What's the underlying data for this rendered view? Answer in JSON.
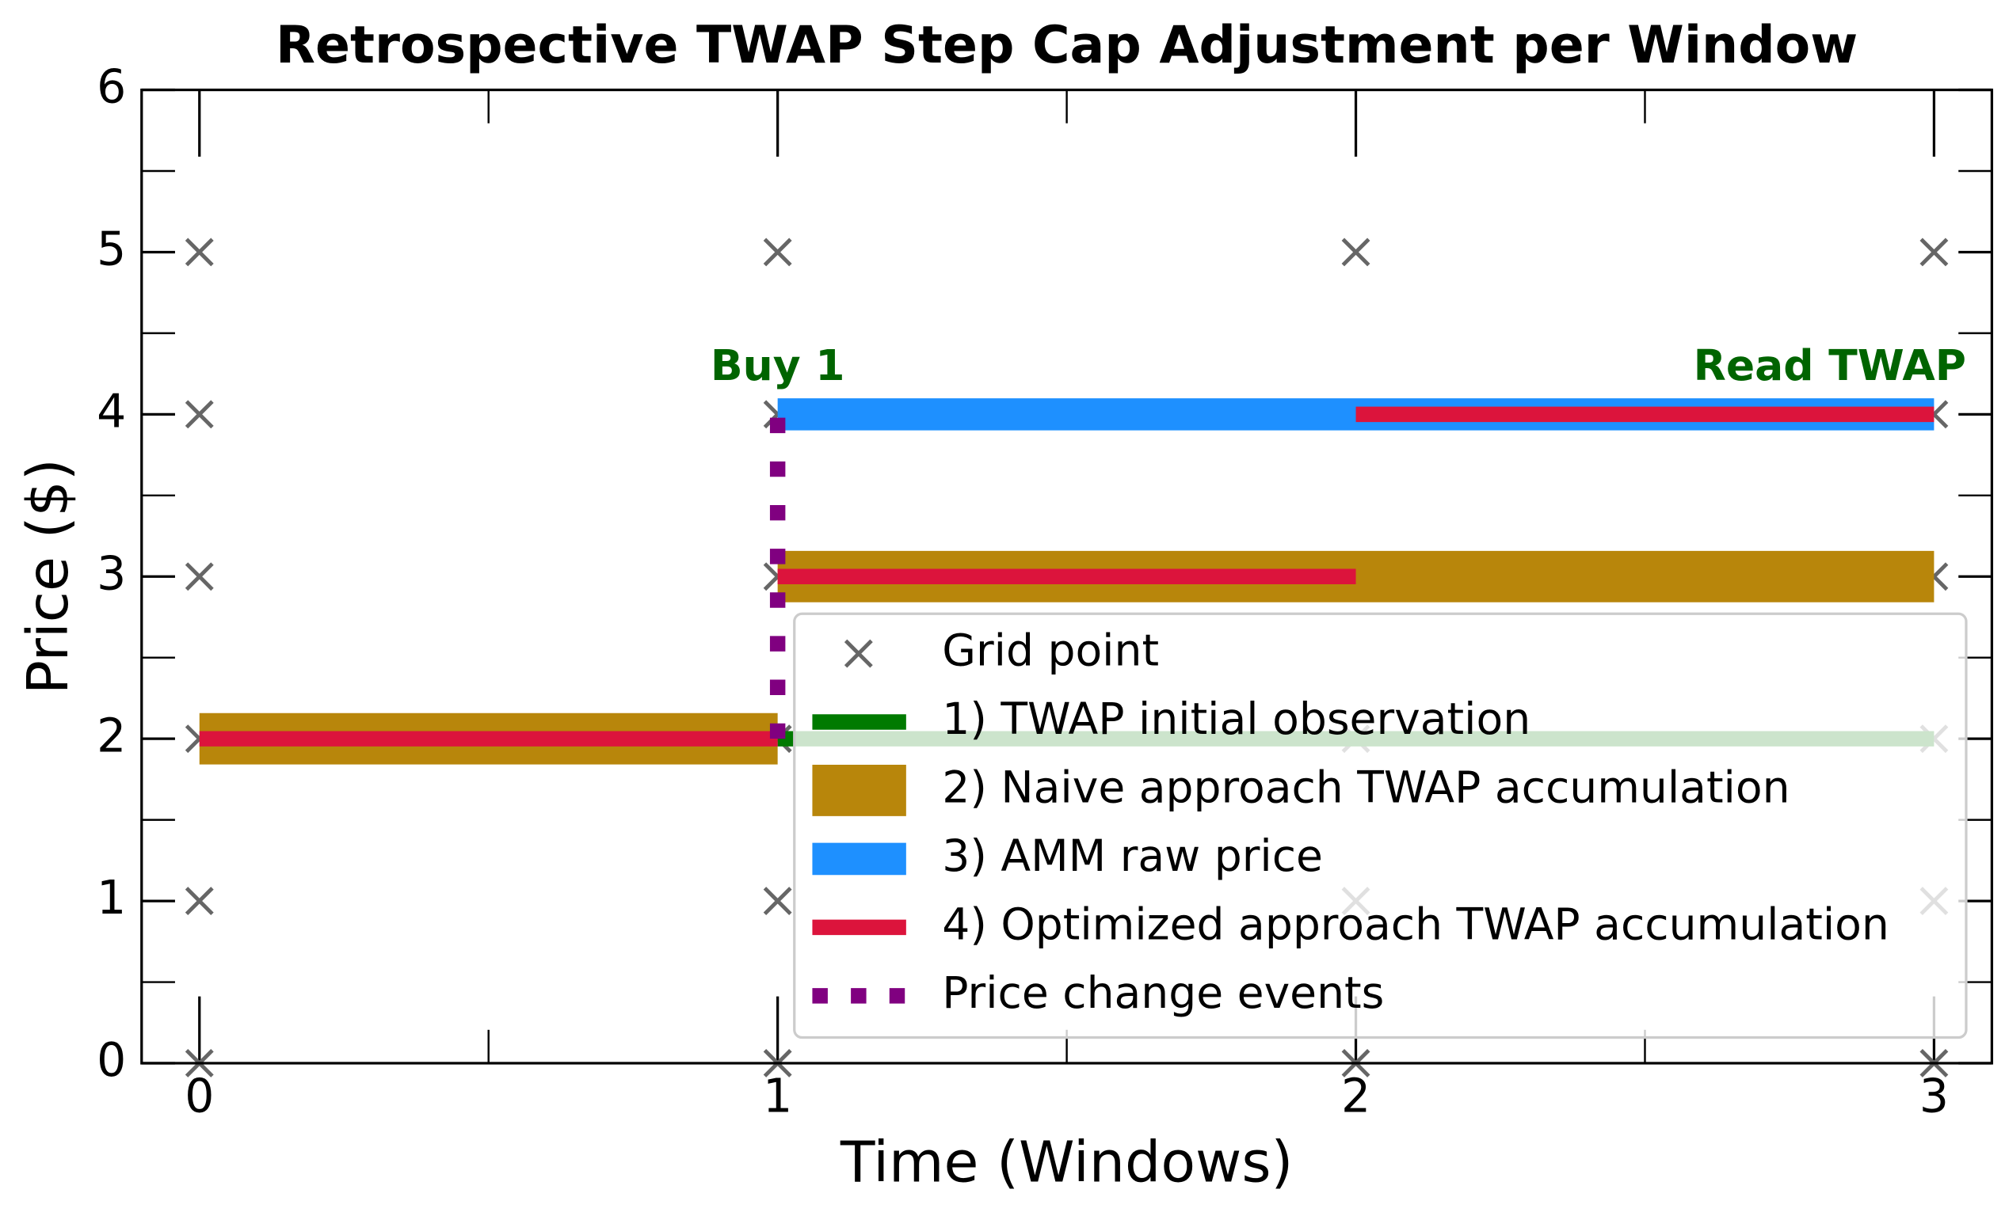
{
  "chart_data": {
    "type": "line",
    "title": "Retrospective TWAP Step Cap Adjustment per Window",
    "x_label": "Time (Windows)",
    "y_label": "Price ($)",
    "xlim": [
      -0.1,
      3.1
    ],
    "ylim": [
      0,
      6
    ],
    "xticks": [
      0,
      1,
      2,
      3
    ],
    "yticks": [
      0,
      1,
      2,
      3,
      4,
      5,
      6
    ],
    "legend_location": "lower right",
    "grid_points": {
      "name": "Grid point",
      "color": "#666666",
      "x": [
        0,
        0,
        0,
        0,
        0,
        0,
        1,
        1,
        1,
        1,
        1,
        1,
        2,
        2,
        2,
        2,
        2,
        2,
        3,
        3,
        3,
        3,
        3,
        3
      ],
      "y": [
        0,
        1,
        2,
        3,
        4,
        5,
        0,
        1,
        2,
        3,
        4,
        5,
        0,
        1,
        2,
        3,
        4,
        5,
        0,
        1,
        2,
        3,
        4,
        5
      ]
    },
    "series": [
      {
        "name": "1) TWAP initial observation",
        "color": "#007a00",
        "width": 12,
        "segments": [
          {
            "x": [
              1,
              3
            ],
            "y": [
              2,
              2
            ]
          }
        ]
      },
      {
        "name": "2) Naive approach TWAP accumulation",
        "color": "#b8860b",
        "width": 40,
        "segments": [
          {
            "x": [
              0,
              1
            ],
            "y": [
              2,
              2
            ]
          },
          {
            "x": [
              1,
              3
            ],
            "y": [
              3,
              3
            ]
          }
        ]
      },
      {
        "name": "3) AMM raw price",
        "color": "#1e90ff",
        "width": 25,
        "segments": [
          {
            "x": [
              1,
              3
            ],
            "y": [
              4,
              4
            ]
          }
        ]
      },
      {
        "name": "4) Optimized approach TWAP accumulation",
        "color": "#dc143c",
        "width": 12,
        "segments": [
          {
            "x": [
              0,
              1
            ],
            "y": [
              2,
              2
            ]
          },
          {
            "x": [
              1,
              2
            ],
            "y": [
              3,
              3
            ]
          },
          {
            "x": [
              2,
              3
            ],
            "y": [
              4,
              4
            ]
          }
        ]
      }
    ],
    "events": {
      "name": "Price change events",
      "color": "#800080",
      "x": [
        1,
        1
      ],
      "y": [
        2,
        4
      ]
    },
    "annotations": [
      {
        "text": "Buy 1",
        "x": 1,
        "y": 4.3,
        "color": "#006400"
      },
      {
        "text": "Read TWAP",
        "x": 3,
        "y": 4.3,
        "color": "#006400"
      }
    ]
  }
}
